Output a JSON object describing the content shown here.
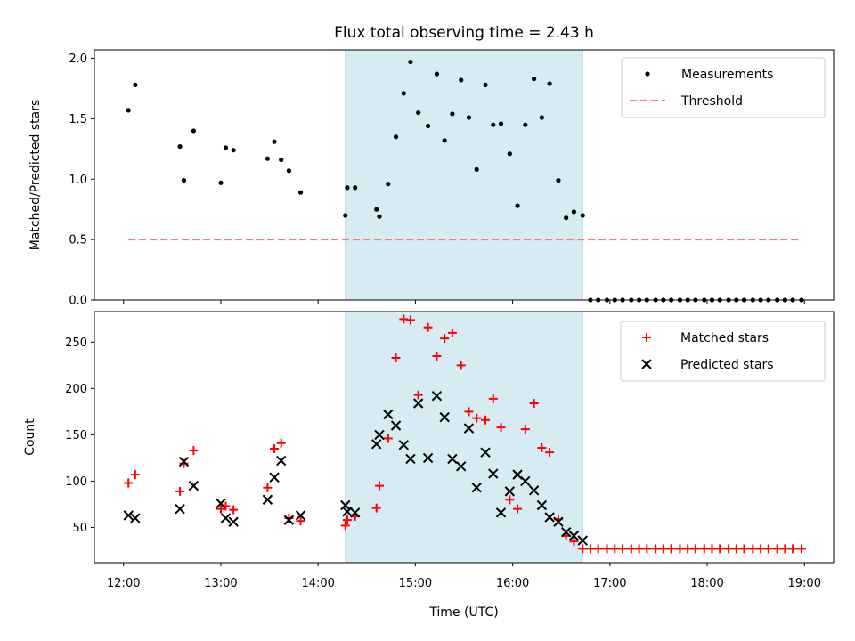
{
  "chart_data": {
    "title": "Flux total observing time = 2.43 h",
    "xlabel": "Time (UTC)",
    "x_tick_labels": [
      "12:00",
      "13:00",
      "14:00",
      "15:00",
      "16:00",
      "17:00",
      "18:00",
      "19:00"
    ],
    "x_ticks_hours": [
      12,
      13,
      14,
      15,
      16,
      17,
      18,
      19
    ],
    "xlim_hours": [
      11.7,
      19.3
    ],
    "shaded_span_hours": [
      14.28,
      16.72
    ],
    "shade_color": "#add8e6",
    "panels": [
      {
        "type": "scatter",
        "ylabel": "Matched/Predicted stars",
        "ylim": [
          0,
          2.07
        ],
        "y_ticks": [
          0.0,
          0.5,
          1.0,
          1.5,
          2.0
        ],
        "y_tick_labels": [
          "0.0",
          "0.5",
          "1.0",
          "1.5",
          "2.0"
        ],
        "legend_position": "top-right",
        "series": [
          {
            "name": "Measurements",
            "marker": "dot",
            "color": "#000000",
            "x": [
              12.05,
              12.12,
              12.58,
              12.62,
              12.72,
              13.0,
              13.05,
              13.13,
              13.48,
              13.55,
              13.62,
              13.7,
              13.82,
              14.28,
              14.3,
              14.38,
              14.6,
              14.63,
              14.72,
              14.8,
              14.88,
              14.95,
              15.03,
              15.13,
              15.22,
              15.3,
              15.38,
              15.47,
              15.55,
              15.63,
              15.72,
              15.8,
              15.88,
              15.97,
              16.05,
              16.13,
              16.22,
              16.3,
              16.38,
              16.47,
              16.55,
              16.63,
              16.72,
              16.8,
              16.88,
              16.97,
              17.05,
              17.13,
              17.22,
              17.3,
              17.38,
              17.47,
              17.55,
              17.63,
              17.72,
              17.8,
              17.88,
              17.97,
              18.05,
              18.13,
              18.22,
              18.3,
              18.38,
              18.47,
              18.55,
              18.63,
              18.72,
              18.8,
              18.88,
              18.97
            ],
            "y": [
              1.57,
              1.78,
              1.27,
              0.99,
              1.4,
              0.97,
              1.26,
              1.24,
              1.17,
              1.31,
              1.16,
              1.07,
              0.89,
              0.7,
              0.93,
              0.93,
              0.75,
              0.69,
              0.96,
              1.35,
              1.71,
              1.97,
              1.55,
              1.44,
              1.87,
              1.32,
              1.54,
              1.82,
              1.51,
              1.08,
              1.78,
              1.45,
              1.46,
              1.21,
              0.78,
              1.45,
              1.83,
              1.51,
              1.79,
              0.99,
              0.68,
              0.73,
              0.7,
              0,
              0,
              0,
              0,
              0,
              0,
              0,
              0,
              0,
              0,
              0,
              0,
              0,
              0,
              0,
              0,
              0,
              0,
              0,
              0,
              0,
              0,
              0,
              0,
              0,
              0,
              0
            ]
          },
          {
            "name": "Threshold",
            "type": "line",
            "style": "dashed",
            "color": "#ff7777",
            "x": [
              12.05,
              18.97
            ],
            "y": [
              0.5,
              0.5
            ]
          }
        ]
      },
      {
        "type": "scatter",
        "ylabel": "Count",
        "ylim": [
          12,
          283
        ],
        "y_ticks": [
          50,
          100,
          150,
          200,
          250
        ],
        "y_tick_labels": [
          "50",
          "100",
          "150",
          "200",
          "250"
        ],
        "legend_position": "top-right",
        "series": [
          {
            "name": "Matched stars",
            "marker": "plus",
            "color": "#ff0000",
            "x": [
              12.05,
              12.12,
              12.58,
              12.62,
              12.72,
              13.0,
              13.05,
              13.13,
              13.48,
              13.55,
              13.62,
              13.7,
              13.82,
              14.28,
              14.3,
              14.38,
              14.6,
              14.63,
              14.72,
              14.8,
              14.88,
              14.95,
              15.03,
              15.13,
              15.22,
              15.3,
              15.38,
              15.47,
              15.55,
              15.63,
              15.72,
              15.8,
              15.88,
              15.97,
              16.05,
              16.13,
              16.22,
              16.3,
              16.38,
              16.47,
              16.55,
              16.63,
              16.72,
              16.8,
              16.88,
              16.97,
              17.05,
              17.13,
              17.22,
              17.3,
              17.38,
              17.47,
              17.55,
              17.63,
              17.72,
              17.8,
              17.88,
              17.97,
              18.05,
              18.13,
              18.22,
              18.3,
              18.38,
              18.47,
              18.55,
              18.63,
              18.72,
              18.8,
              18.88,
              18.97
            ],
            "y": [
              98,
              107,
              89,
              119,
              133,
              70,
              73,
              69,
              93,
              135,
              141,
              60,
              57,
              52,
              58,
              62,
              71,
              95,
              146,
              233,
              275,
              274,
              193,
              266,
              235,
              254,
              260,
              225,
              175,
              168,
              166,
              189,
              158,
              80,
              70,
              156,
              184,
              136,
              131,
              59,
              41,
              35,
              27,
              27,
              27,
              27,
              27,
              27,
              27,
              27,
              27,
              27,
              27,
              27,
              27,
              27,
              27,
              27,
              27,
              27,
              27,
              27,
              27,
              27,
              27,
              27,
              27,
              27,
              27,
              27
            ]
          },
          {
            "name": "Predicted stars",
            "marker": "x",
            "color": "#000000",
            "x": [
              12.05,
              12.12,
              12.58,
              12.62,
              12.72,
              13.0,
              13.05,
              13.13,
              13.48,
              13.55,
              13.62,
              13.7,
              13.82,
              14.28,
              14.3,
              14.38,
              14.6,
              14.63,
              14.72,
              14.8,
              14.88,
              14.95,
              15.03,
              15.13,
              15.22,
              15.3,
              15.38,
              15.47,
              15.55,
              15.63,
              15.72,
              15.8,
              15.88,
              15.97,
              16.05,
              16.13,
              16.22,
              16.3,
              16.38,
              16.47,
              16.55,
              16.63,
              16.72
            ],
            "y": [
              63,
              60,
              70,
              121,
              95,
              76,
              60,
              56,
              80,
              104,
              122,
              58,
              63,
              74,
              67,
              66,
              140,
              150,
              172,
              160,
              139,
              124,
              184,
              125,
              192,
              169,
              124,
              116,
              157,
              93,
              131,
              108,
              66,
              89,
              107,
              100,
              90,
              74,
              61,
              56,
              45,
              41,
              36
            ]
          }
        ]
      }
    ]
  }
}
